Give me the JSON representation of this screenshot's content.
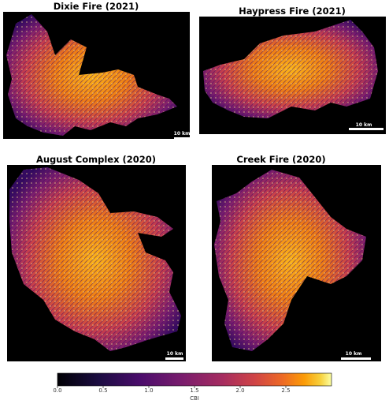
{
  "panels": [
    {
      "title": "Dixie Fire (2021)",
      "scale_label": "10 km"
    },
    {
      "title": "Haypress Fire (2021)",
      "scale_label": "10 km"
    },
    {
      "title": "August Complex (2020)",
      "scale_label": "10 km"
    },
    {
      "title": "Creek Fire (2020)",
      "scale_label": "10 km"
    }
  ],
  "colorbar": {
    "label": "CBI",
    "lim": [
      0,
      3
    ],
    "ticks": [
      {
        "value": 0,
        "label": "0.0"
      },
      0.5,
      {
        "value": 1,
        "label": "1.0"
      },
      1.5,
      {
        "value": 2,
        "label": "2.0"
      },
      2.5
    ]
  }
}
